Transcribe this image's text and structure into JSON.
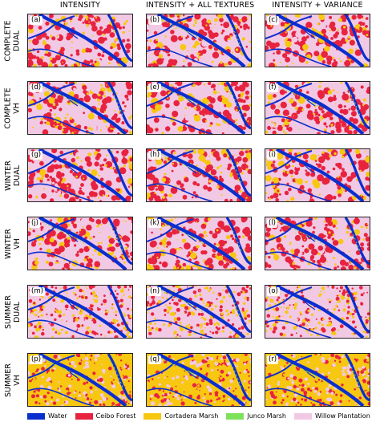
{
  "columns": [
    "INTENSITY",
    "INTENSITY + ALL TEXTURES",
    "INTENSITY + VARIANCE"
  ],
  "rows": [
    [
      "COMPLETE",
      "DUAL"
    ],
    [
      "COMPLETE",
      "VH"
    ],
    [
      "WINTER",
      "DUAL"
    ],
    [
      "WINTER",
      "VH"
    ],
    [
      "SUMMER",
      "DUAL"
    ],
    [
      "SUMMER",
      "VH"
    ]
  ],
  "panel_labels": [
    "(a)",
    "(b)",
    "(c)",
    "(d)",
    "(e)",
    "(f)",
    "(g)",
    "(h)",
    "(i)",
    "(j)",
    "(k)",
    "(l)",
    "(m)",
    "(n)",
    "(o)",
    "(p)",
    "(q)",
    "(r)"
  ],
  "legend": [
    {
      "label": "Water",
      "color": "#0a2fcf"
    },
    {
      "label": "Ceibo Forest",
      "color": "#e8233f"
    },
    {
      "label": "Cortadera Marsh",
      "color": "#f7c711"
    },
    {
      "label": "Junco Marsh",
      "color": "#7ee15a"
    },
    {
      "label": "Willow Plantation",
      "color": "#f2c9e4"
    }
  ]
}
